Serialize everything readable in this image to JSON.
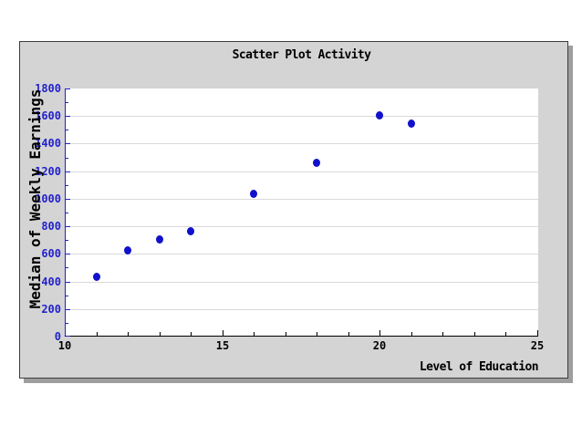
{
  "chart_data": {
    "type": "scatter",
    "title": "Scatter Plot Activity",
    "xlabel": "Level of Education",
    "ylabel": "Median of Weekly Earnings",
    "xlim": [
      10,
      25
    ],
    "ylim": [
      0,
      1800
    ],
    "x_major_ticks": [
      10,
      15,
      20,
      25
    ],
    "x_minor_step": 1,
    "y_major_ticks": [
      0,
      200,
      400,
      600,
      800,
      1000,
      1200,
      1400,
      1600,
      1800
    ],
    "y_minor_step": 100,
    "grid": "horizontal-major-only",
    "legend": "none",
    "points": [
      {
        "x": 11,
        "y": 440
      },
      {
        "x": 12,
        "y": 630
      },
      {
        "x": 13,
        "y": 710
      },
      {
        "x": 14,
        "y": 770
      },
      {
        "x": 16,
        "y": 1040
      },
      {
        "x": 18,
        "y": 1265
      },
      {
        "x": 20,
        "y": 1610
      },
      {
        "x": 21,
        "y": 1550
      }
    ],
    "colors": {
      "blue": "#2222cc",
      "black": "#000000",
      "marker": "#1111cc",
      "grid": "#dadada",
      "plot_bg": "#ffffff",
      "panel": "#d4d4d4",
      "panel_border": "#3c3c3c",
      "panel_shadow": "#9e9e9e"
    }
  }
}
